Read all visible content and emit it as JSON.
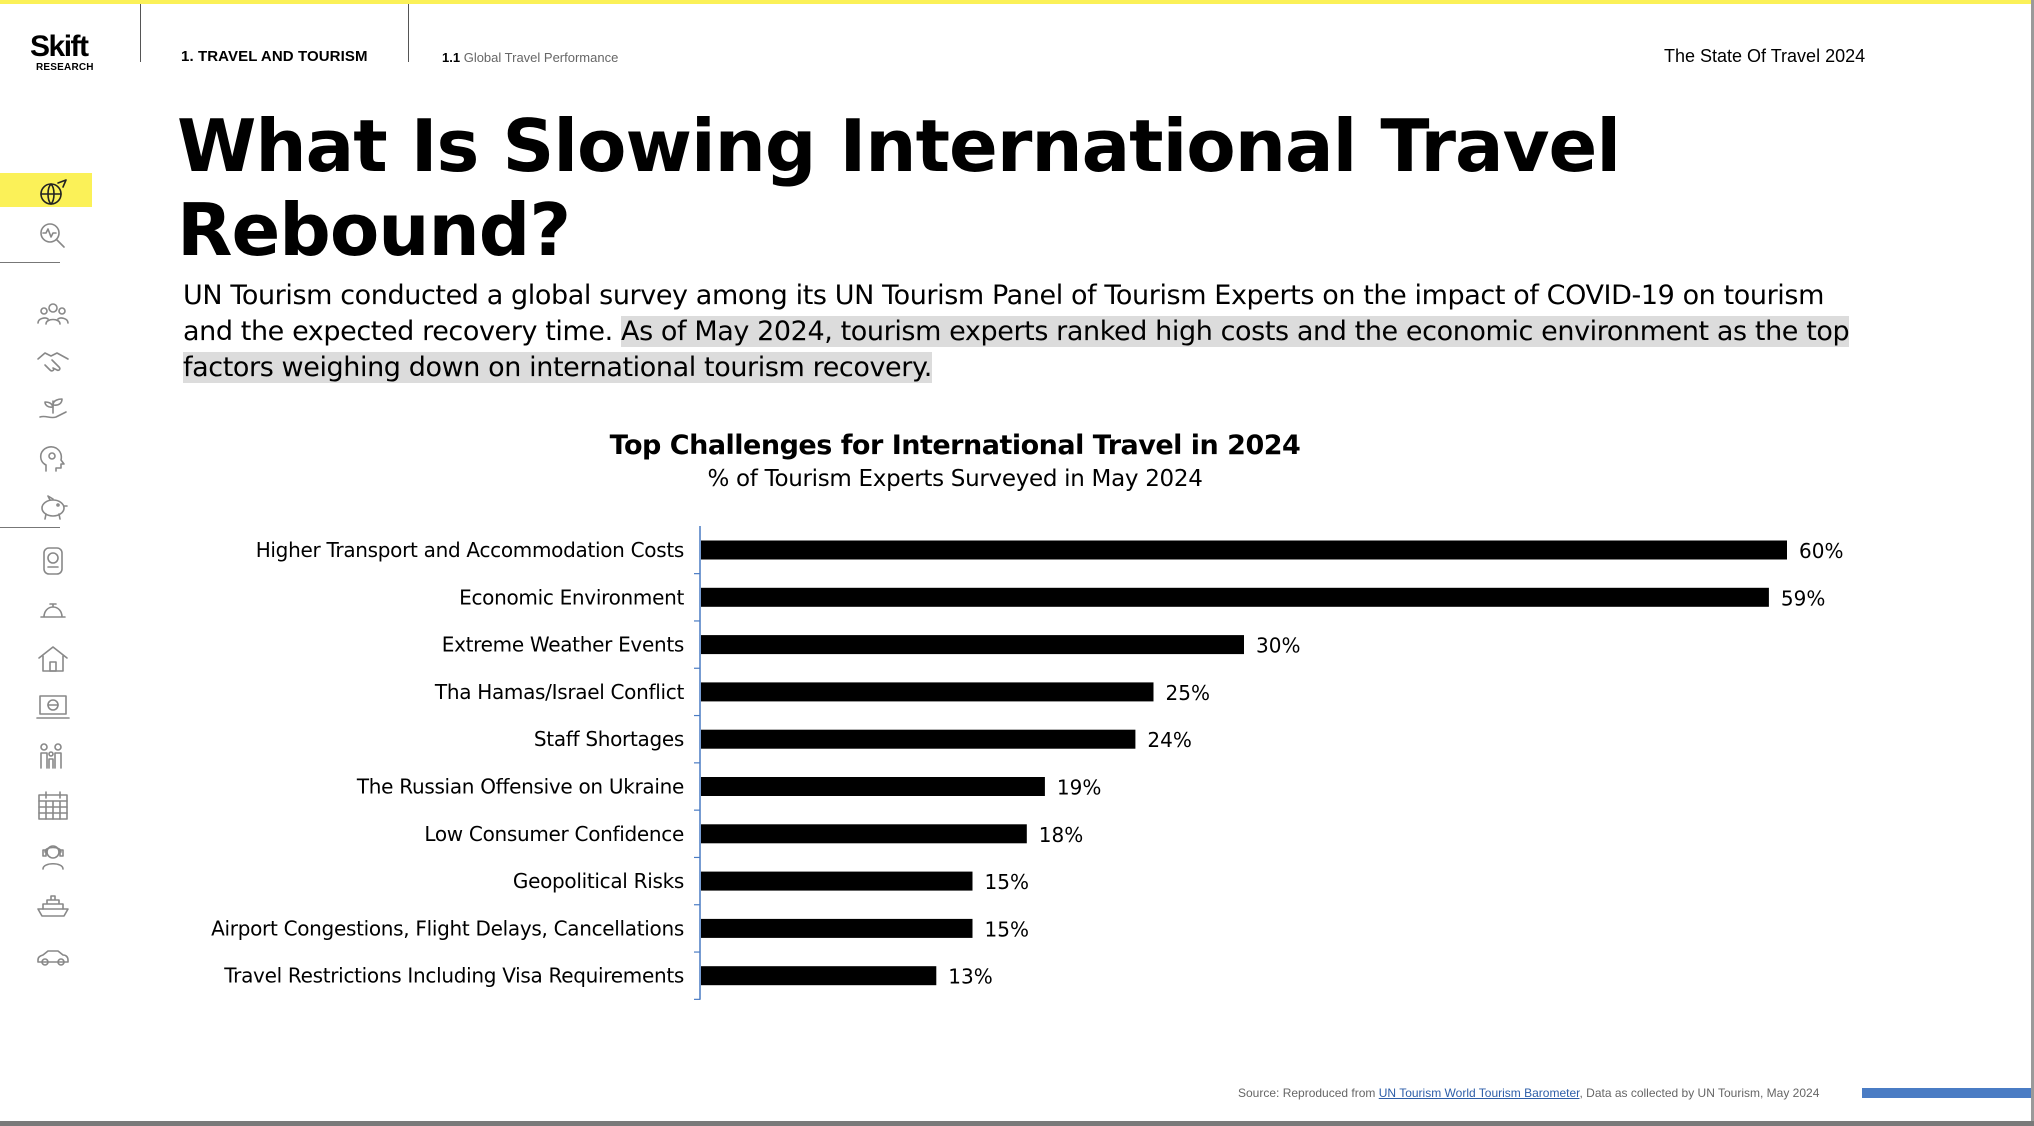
{
  "header": {
    "logo_main": "Skift",
    "logo_sub": "RESEARCH",
    "section": "1. TRAVEL AND TOURISM",
    "subsection_number": "1.1",
    "subsection_title": "Global Travel Performance",
    "report_title": "The State Of Travel 2024"
  },
  "colors": {
    "accent": "#fbf158",
    "bar": "#000000",
    "axis": "#4a7cc4",
    "highlight": "#dcdcdc"
  },
  "sidebar": {
    "icons": [
      {
        "name": "globe-plane-icon",
        "active": true
      },
      {
        "name": "search-chart-icon",
        "active": false
      },
      {
        "name": "people-group-icon",
        "active": false
      },
      {
        "name": "handshake-icon",
        "active": false
      },
      {
        "name": "plant-hand-icon",
        "active": false
      },
      {
        "name": "head-gears-icon",
        "active": false
      },
      {
        "name": "piggy-bank-icon",
        "active": false
      },
      {
        "name": "passport-icon",
        "active": false
      },
      {
        "name": "service-bell-icon",
        "active": false
      },
      {
        "name": "house-icon",
        "active": false
      },
      {
        "name": "laptop-globe-icon",
        "active": false
      },
      {
        "name": "family-icon",
        "active": false
      },
      {
        "name": "calendar-icon",
        "active": false
      },
      {
        "name": "agent-headset-icon",
        "active": false
      },
      {
        "name": "cruise-ship-icon",
        "active": false
      },
      {
        "name": "car-icon",
        "active": false
      }
    ]
  },
  "page": {
    "title_line1": "What Is Slowing International Travel",
    "title_line2": "Rebound?",
    "lead_plain": "UN Tourism conducted a global survey among its UN Tourism Panel of Tourism Experts on the impact of COVID-19 on tourism and the expected recovery time. ",
    "lead_highlight": "As of May 2024, tourism experts ranked high costs and the economic environment as the top factors weighing down on international tourism recovery."
  },
  "chart_data": {
    "type": "bar",
    "orientation": "horizontal",
    "title": "Top Challenges for International Travel in 2024",
    "subtitle": "% of Tourism Experts Surveyed in May 2024",
    "categories": [
      "Higher Transport and Accommodation Costs",
      "Economic Environment",
      "Extreme Weather Events",
      "Tha Hamas/Israel Conflict",
      "Staff Shortages",
      "The Russian Offensive on Ukraine",
      "Low Consumer Confidence",
      "Geopolitical Risks",
      "Airport Congestions, Flight Delays, Cancellations",
      "Travel Restrictions Including Visa Requirements"
    ],
    "values": [
      60,
      59,
      30,
      25,
      24,
      19,
      18,
      15,
      15,
      13
    ],
    "value_labels": [
      "60%",
      "59%",
      "30%",
      "25%",
      "24%",
      "19%",
      "18%",
      "15%",
      "15%",
      "13%"
    ],
    "xlabel": "",
    "ylabel": "",
    "xlim": [
      0,
      60
    ],
    "grid": false,
    "legend": "none"
  },
  "footer": {
    "source_prefix": "Source: Reproduced from ",
    "source_link": "UN Tourism World Tourism Barometer",
    "source_suffix": ", Data as collected by UN Tourism, May 2024"
  }
}
